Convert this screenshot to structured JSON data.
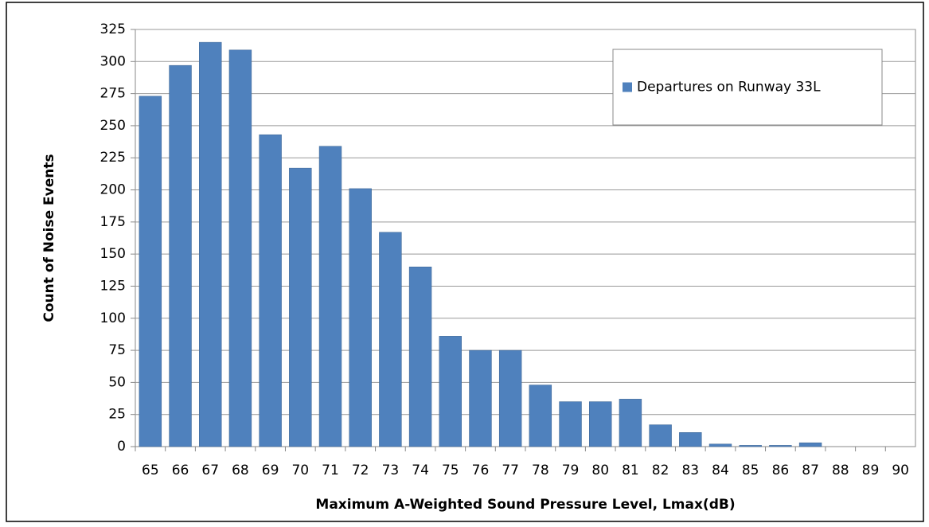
{
  "chart_data": {
    "type": "bar",
    "categories": [
      "65",
      "66",
      "67",
      "68",
      "69",
      "70",
      "71",
      "72",
      "73",
      "74",
      "75",
      "76",
      "77",
      "78",
      "79",
      "80",
      "81",
      "82",
      "83",
      "84",
      "85",
      "86",
      "87",
      "88",
      "89",
      "90"
    ],
    "series": [
      {
        "name": "Departures on Runway 33L",
        "color": "#4f81bd",
        "values": [
          273,
          297,
          315,
          309,
          243,
          217,
          234,
          201,
          167,
          140,
          86,
          75,
          75,
          48,
          35,
          35,
          37,
          17,
          11,
          2,
          1,
          1,
          3,
          0,
          0,
          0
        ]
      }
    ],
    "x_label": "Maximum A-Weighted Sound Pressure Level, Lmax(dB)",
    "y_label": "Count of Noise Events",
    "ylim": [
      0,
      325
    ],
    "yticks": [
      0,
      25,
      50,
      75,
      100,
      125,
      150,
      175,
      200,
      225,
      250,
      275,
      300,
      325
    ],
    "grid": true,
    "legend": "upper right"
  }
}
